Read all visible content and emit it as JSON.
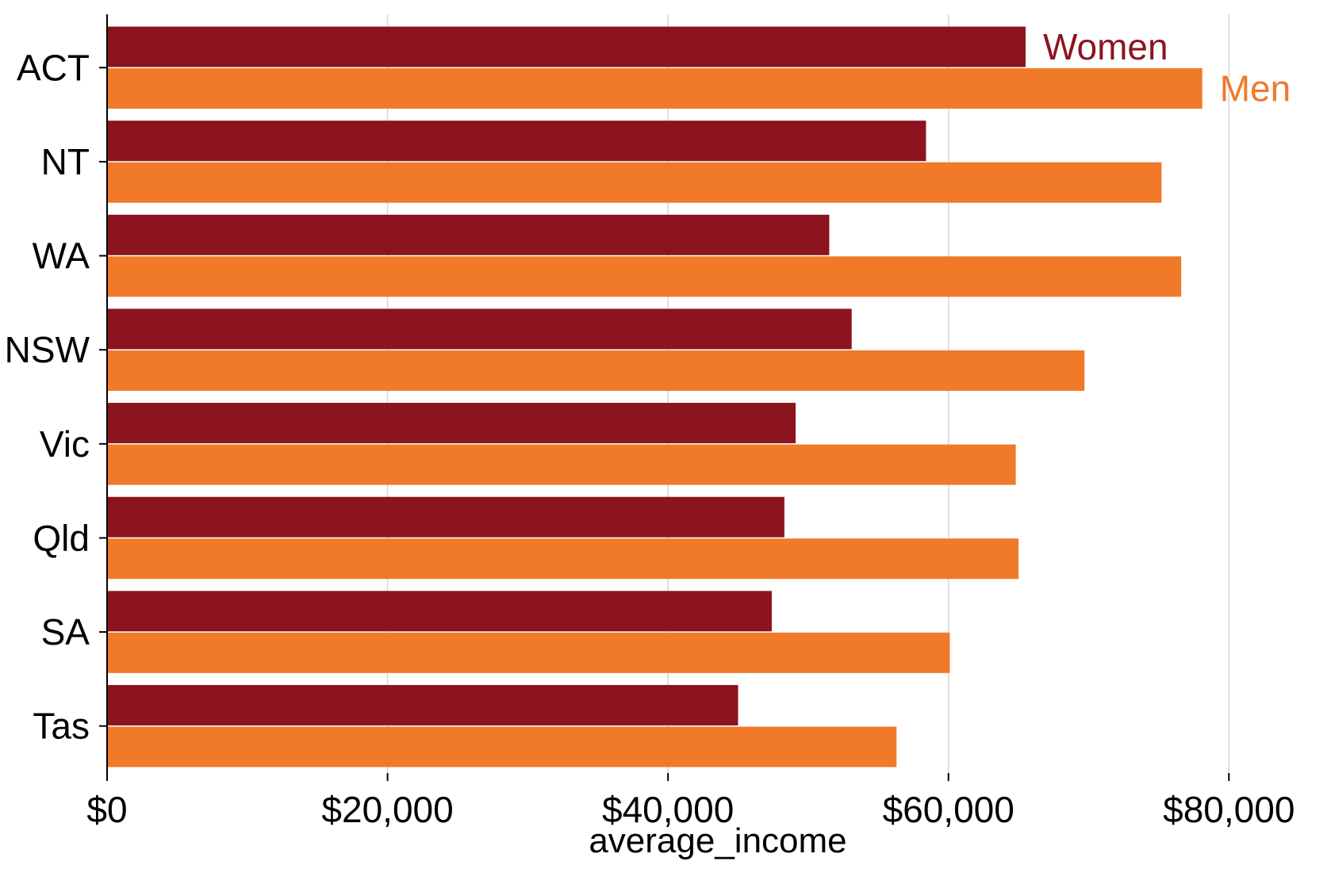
{
  "chart_data": {
    "type": "bar",
    "orientation": "horizontal",
    "categories": [
      "ACT",
      "NT",
      "WA",
      "NSW",
      "Vic",
      "Qld",
      "SA",
      "Tas"
    ],
    "series": [
      {
        "name": "Women",
        "color": "#8b141f",
        "values": [
          65500,
          58400,
          51500,
          53100,
          49100,
          48300,
          47400,
          45000
        ]
      },
      {
        "name": "Men",
        "color": "#f07a2a",
        "values": [
          78100,
          75200,
          76600,
          69700,
          64800,
          65000,
          60100,
          56300
        ]
      }
    ],
    "xlabel": "average_income",
    "ylabel": "",
    "xlim": [
      0,
      84000
    ],
    "xticks": [
      0,
      20000,
      40000,
      60000,
      80000
    ],
    "xtick_labels": [
      "$0",
      "$20,000",
      "$40,000",
      "$60,000",
      "$80,000"
    ],
    "grid": "vertical",
    "legend": "direct labels at end of first category bars"
  }
}
